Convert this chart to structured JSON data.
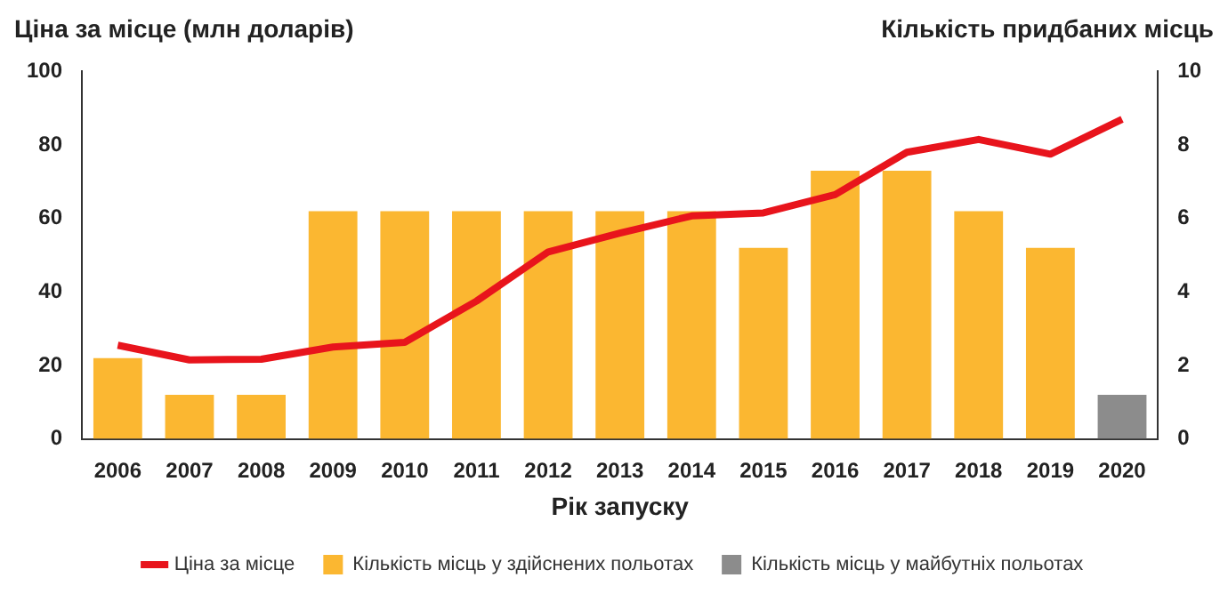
{
  "chart_data": {
    "type": "bar",
    "ylabel": "Ціна за місце (млн доларів)",
    "y2label": "Кількість придбаних місць",
    "xlabel": "Рік запуску",
    "categories": [
      "2006",
      "2007",
      "2008",
      "2009",
      "2010",
      "2011",
      "2012",
      "2013",
      "2014",
      "2015",
      "2016",
      "2017",
      "2018",
      "2019",
      "2020"
    ],
    "series": [
      {
        "name": "Ціна за місце",
        "type": "line",
        "color": "#e8141c",
        "values": [
          25.5,
          21.5,
          21.7,
          25,
          26.3,
          37.5,
          50.9,
          56,
          60.7,
          61.5,
          66.5,
          78,
          81.5,
          77.5,
          87
        ]
      },
      {
        "name": "Кількість місць у здійснених польотах",
        "axis": "y2",
        "color": "#fbb731",
        "values": [
          2.2,
          1.2,
          1.2,
          6.2,
          6.2,
          6.2,
          6.2,
          6.2,
          6.2,
          5.2,
          7.3,
          7.3,
          6.2,
          5.2,
          null
        ]
      },
      {
        "name": "Кількість місць у майбутніх польотах",
        "axis": "y2",
        "color": "#8c8c8c",
        "values": [
          null,
          null,
          null,
          null,
          null,
          null,
          null,
          null,
          null,
          null,
          null,
          null,
          null,
          null,
          1.2
        ]
      }
    ],
    "ylim": [
      0,
      100
    ],
    "yticks": [
      0,
      20,
      40,
      60,
      80,
      100
    ],
    "y2lim": [
      0,
      10
    ],
    "y2ticks": [
      0,
      2,
      4,
      6,
      8,
      10
    ],
    "grid": false,
    "legend": "bottom",
    "marker": "none",
    "line_style": "solid"
  }
}
